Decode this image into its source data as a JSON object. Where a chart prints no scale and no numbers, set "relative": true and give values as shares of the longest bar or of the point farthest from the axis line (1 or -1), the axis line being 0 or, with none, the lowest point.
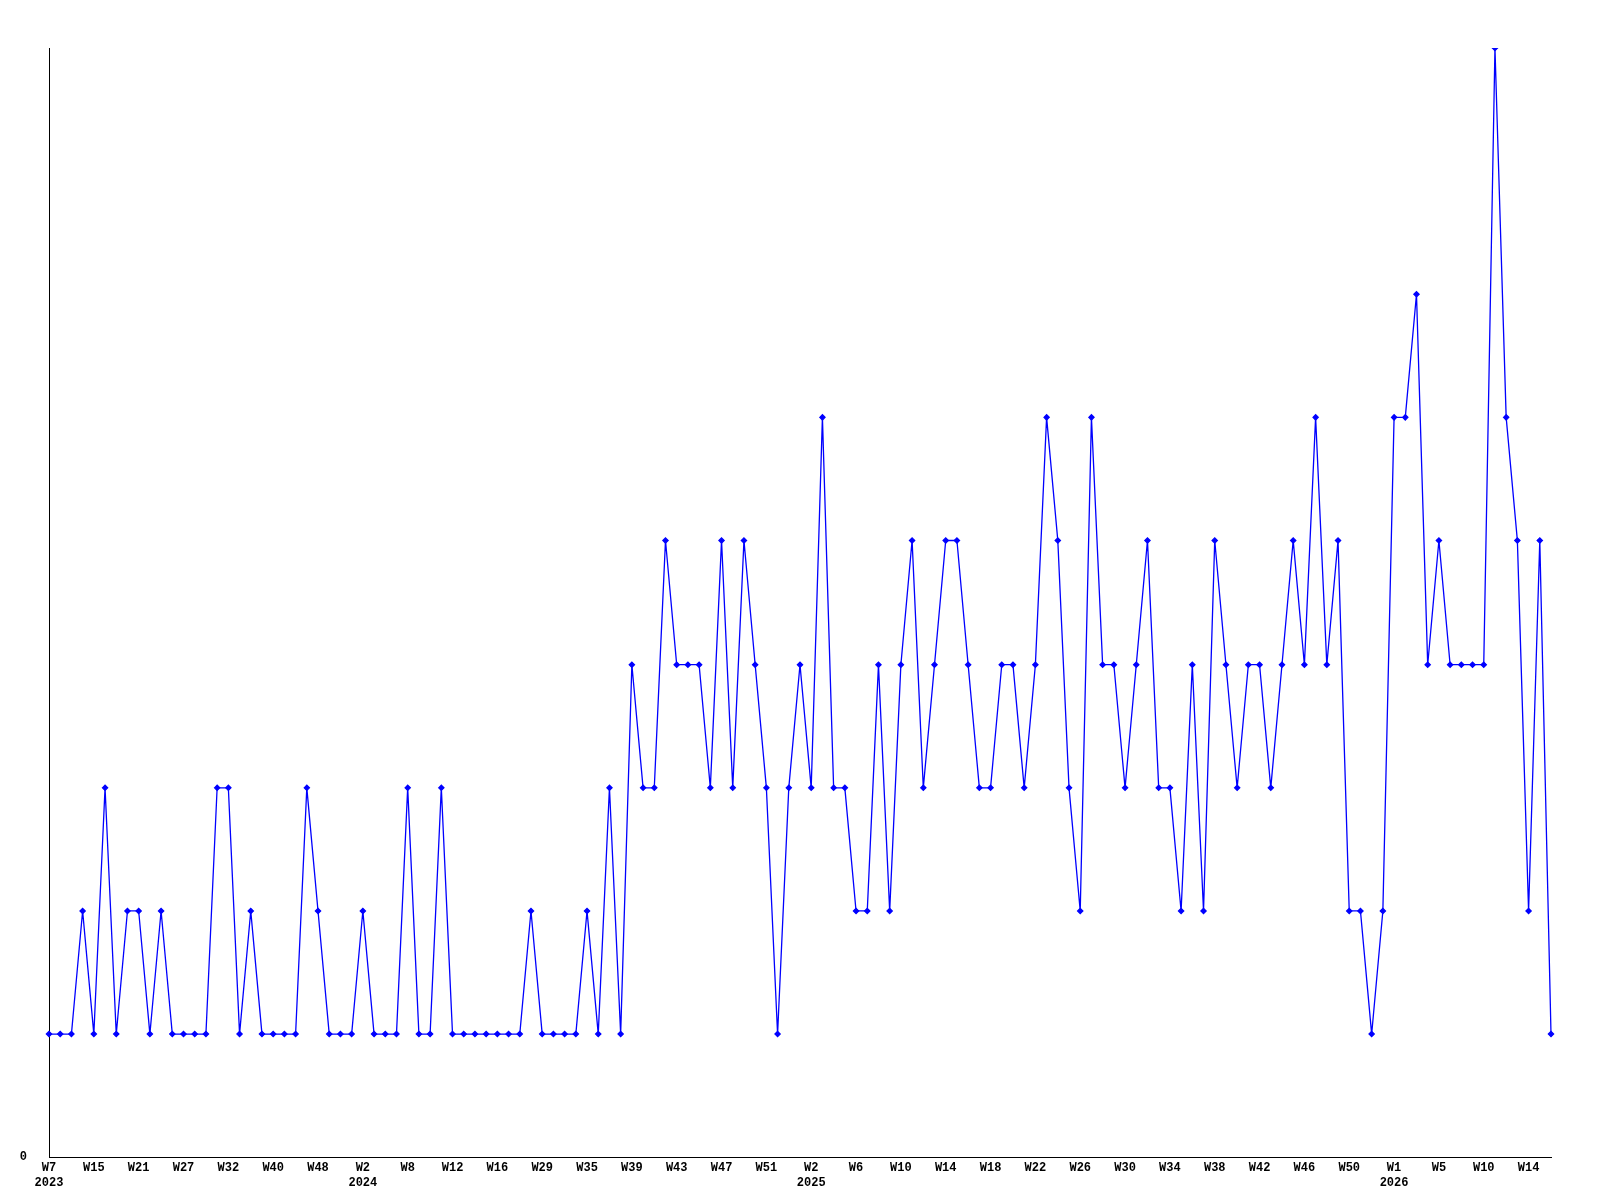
{
  "chart_data": {
    "type": "line",
    "relative": true,
    "annotations": [
      "0"
    ],
    "color": "#0000ff",
    "marker": "diamond",
    "line_style": "solid",
    "grid": false,
    "legend": false,
    "categories": [
      "W7\n2023",
      null,
      null,
      null,
      "W15",
      null,
      null,
      null,
      "W21",
      null,
      null,
      null,
      "W27",
      null,
      null,
      null,
      "W32",
      null,
      null,
      null,
      "W40",
      null,
      null,
      null,
      "W48",
      null,
      null,
      null,
      "W2\n2024",
      null,
      null,
      null,
      "W8",
      null,
      null,
      null,
      "W12",
      null,
      null,
      null,
      "W16",
      null,
      null,
      null,
      "W29",
      null,
      null,
      null,
      "W35",
      null,
      null,
      null,
      "W39",
      null,
      null,
      null,
      "W43",
      null,
      null,
      null,
      "W47",
      null,
      null,
      null,
      "W51",
      null,
      null,
      null,
      "W2\n2025",
      null,
      null,
      null,
      "W6",
      null,
      null,
      null,
      "W10",
      null,
      null,
      null,
      "W14",
      null,
      null,
      null,
      "W18",
      null,
      null,
      null,
      "W22",
      null,
      null,
      null,
      "W26",
      null,
      null,
      null,
      "W30",
      null,
      null,
      null,
      "W34",
      null,
      null,
      null,
      "W38",
      null,
      null,
      null,
      "W42",
      null,
      null,
      null,
      "W46",
      null,
      null,
      null,
      "W50",
      null,
      null,
      null,
      "W1\n2026",
      null,
      null,
      null,
      "W5",
      null,
      null,
      null,
      "W10",
      null,
      null,
      null,
      "W14",
      null,
      null
    ],
    "values": [
      0.111,
      0.111,
      0.111,
      0.222,
      0.111,
      0.333,
      0.111,
      0.222,
      0.222,
      0.111,
      0.222,
      0.111,
      0.111,
      0.111,
      0.111,
      0.333,
      0.333,
      0.111,
      0.222,
      0.111,
      0.111,
      0.111,
      0.111,
      0.333,
      0.222,
      0.111,
      0.111,
      0.111,
      0.222,
      0.111,
      0.111,
      0.111,
      0.333,
      0.111,
      0.111,
      0.333,
      0.111,
      0.111,
      0.111,
      0.111,
      0.111,
      0.111,
      0.111,
      0.222,
      0.111,
      0.111,
      0.111,
      0.111,
      0.222,
      0.111,
      0.333,
      0.111,
      0.444,
      0.333,
      0.333,
      0.556,
      0.444,
      0.444,
      0.444,
      0.333,
      0.556,
      0.333,
      0.556,
      0.444,
      0.333,
      0.111,
      0.333,
      0.444,
      0.333,
      0.667,
      0.333,
      0.333,
      0.222,
      0.222,
      0.444,
      0.222,
      0.444,
      0.556,
      0.333,
      0.444,
      0.556,
      0.556,
      0.444,
      0.333,
      0.333,
      0.444,
      0.444,
      0.333,
      0.444,
      0.667,
      0.556,
      0.333,
      0.222,
      0.667,
      0.444,
      0.444,
      0.333,
      0.444,
      0.556,
      0.333,
      0.333,
      0.222,
      0.444,
      0.222,
      0.556,
      0.444,
      0.333,
      0.444,
      0.444,
      0.333,
      0.444,
      0.556,
      0.444,
      0.667,
      0.444,
      0.556,
      0.222,
      0.222,
      0.111,
      0.222,
      0.667,
      0.667,
      0.778,
      0.444,
      0.556,
      0.444,
      0.444,
      0.444,
      0.444,
      1,
      0.667,
      0.556,
      0.222,
      0.556,
      0.111
    ]
  }
}
